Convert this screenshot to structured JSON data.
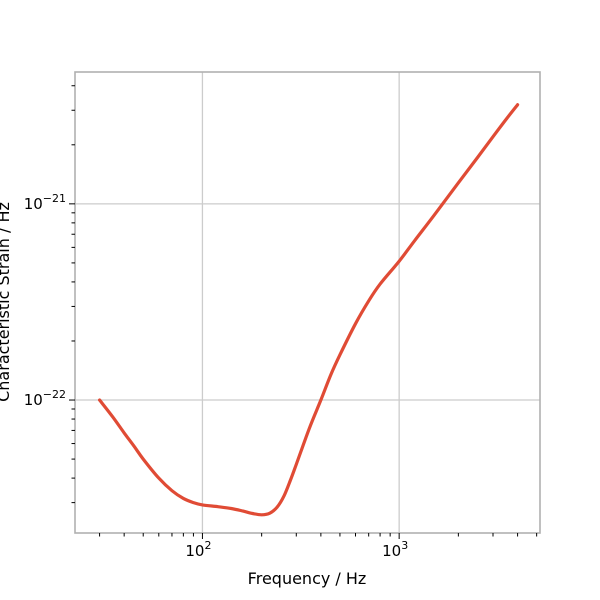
{
  "chart_data": {
    "type": "line",
    "title": "",
    "xlabel": "Frequency / Hz",
    "ylabel": "Characteristic Strain / Hz",
    "xscale": "log",
    "yscale": "log",
    "xlim": [
      22.5,
      5200
    ],
    "ylim": [
      2.1e-23,
      4.7e-21
    ],
    "grid": true,
    "x_ticks": [
      {
        "value": 100,
        "base": "10",
        "exp": "2"
      },
      {
        "value": 1000,
        "base": "10",
        "exp": "3"
      }
    ],
    "y_ticks": [
      {
        "value": 1e-22,
        "base": "10",
        "exp": "−22"
      },
      {
        "value": 1e-21,
        "base": "10",
        "exp": "−21"
      }
    ],
    "series": [
      {
        "color": "#e04b35",
        "x": [
          30,
          35,
          40,
          45,
          50,
          60,
          70,
          80,
          90,
          100,
          120,
          140,
          160,
          180,
          200,
          220,
          240,
          260,
          280,
          300,
          350,
          400,
          450,
          500,
          600,
          700,
          800,
          1000,
          1200,
          1500,
          2000,
          2500,
          3000,
          3500,
          4000
        ],
        "y": [
          1e-22,
          8.2e-23,
          6.8e-23,
          5.8e-23,
          5e-23,
          4e-23,
          3.45e-23,
          3.15e-23,
          3e-23,
          2.92e-23,
          2.86e-23,
          2.8e-23,
          2.72e-23,
          2.64e-23,
          2.6e-23,
          2.65e-23,
          2.85e-23,
          3.25e-23,
          3.9e-23,
          4.7e-23,
          7.2e-23,
          1e-22,
          1.35e-22,
          1.7e-22,
          2.45e-22,
          3.2e-22,
          3.9e-22,
          5.1e-22,
          6.5e-22,
          8.7e-22,
          1.28e-21,
          1.72e-21,
          2.2e-21,
          2.7e-21,
          3.2e-21
        ]
      }
    ]
  }
}
